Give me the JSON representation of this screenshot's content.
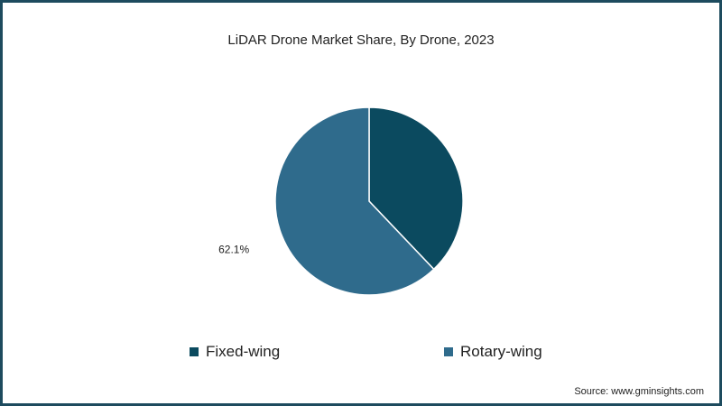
{
  "chart_data": {
    "type": "pie",
    "title": "LiDAR Drone Market Share, By Drone, 2023",
    "slices": [
      {
        "name": "Fixed-wing",
        "value": 37.9,
        "color": "#0b4a5f",
        "label": ""
      },
      {
        "name": "Rotary-wing",
        "value": 62.1,
        "color": "#2f6b8c",
        "label": "62.1%"
      }
    ],
    "legend_position": "bottom"
  },
  "source": "Source: www.gminsights.com"
}
